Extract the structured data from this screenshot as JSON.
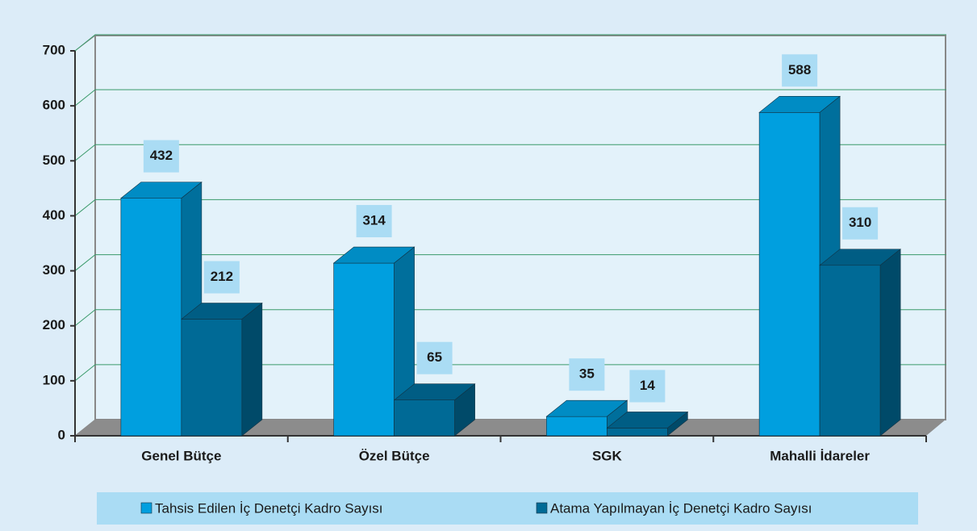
{
  "chart_data": {
    "type": "bar3d",
    "categories": [
      "Genel Bütçe",
      "Özel Bütçe",
      "SGK",
      "Mahalli İdareler"
    ],
    "series": [
      {
        "name": "Tahsis Edilen İç Denetçi Kadro Sayısı",
        "color": "#009fdf",
        "values": [
          432,
          314,
          35,
          588
        ]
      },
      {
        "name": "Atama Yapılmayan İç Denetçi Kadro Sayısı",
        "color": "#006a96",
        "values": [
          212,
          65,
          14,
          310
        ]
      }
    ],
    "ylim": [
      0,
      700
    ],
    "yticks": [
      0,
      100,
      200,
      300,
      400,
      500,
      600,
      700
    ],
    "grid": true,
    "legend": "bottom"
  }
}
